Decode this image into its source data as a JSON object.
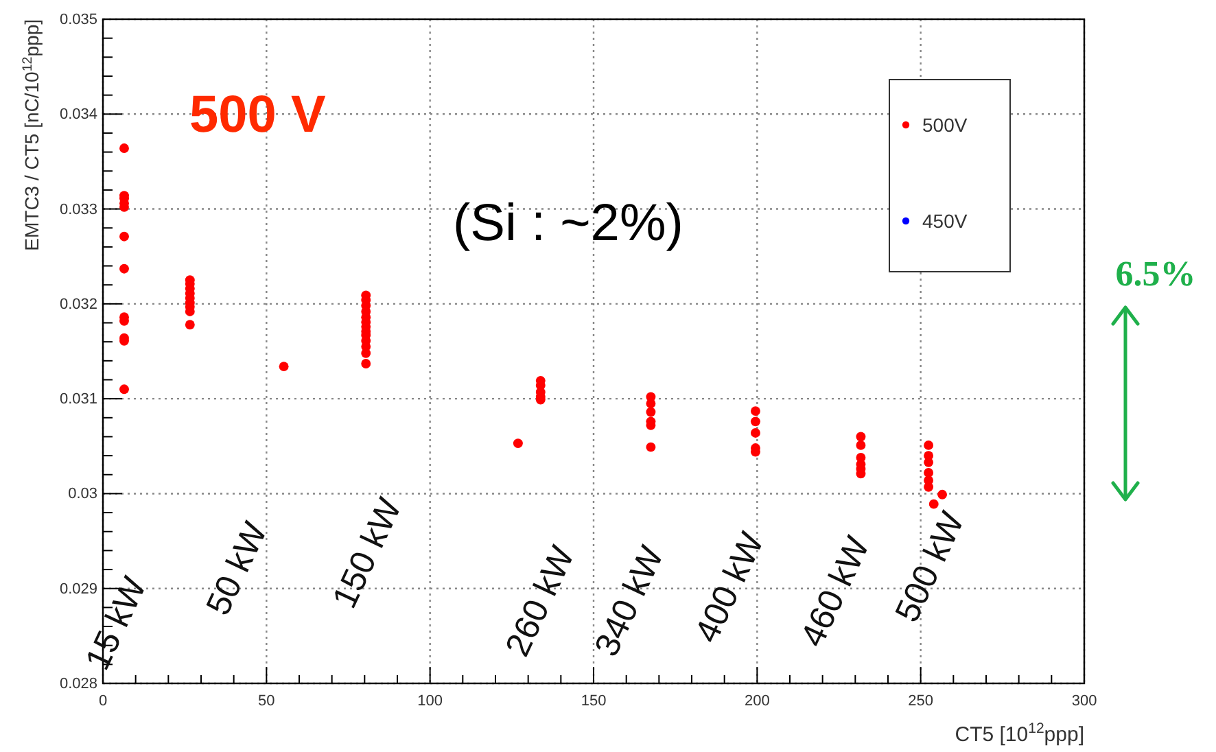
{
  "chart_data": {
    "type": "scatter",
    "xlabel": "CT5 [10$^{12}$ppp]",
    "ylabel": "EMTC3 / CT5 [nC/10$^{12}$ppp]",
    "xlim": [
      0,
      300
    ],
    "xticks": [
      0,
      50,
      100,
      150,
      200,
      250,
      300
    ],
    "ylim": [
      0.028,
      0.035
    ],
    "yticks": [
      0.028,
      0.029,
      0.03,
      0.031,
      0.032,
      0.033,
      0.034,
      0.035
    ],
    "grid": true,
    "legend": "top right",
    "marker": "circle",
    "series": [
      {
        "name": "500V",
        "color": "#ff0000",
        "x": [
          6.5,
          6.5,
          6.5,
          6.5,
          6.5,
          6.5,
          6.5,
          6.5,
          6.5,
          6.5,
          6.5,
          6.5,
          26.6,
          26.6,
          26.6,
          26.6,
          26.6,
          26.6,
          26.6,
          26.6,
          26.6,
          55.3,
          80.4,
          80.4,
          80.4,
          80.4,
          80.4,
          80.4,
          80.4,
          80.4,
          80.4,
          80.4,
          80.4,
          80.4,
          80.4,
          126.9,
          133.8,
          133.8,
          133.8,
          133.8,
          133.8,
          167.5,
          167.5,
          167.5,
          167.5,
          167.5,
          167.5,
          199.5,
          199.5,
          199.5,
          199.5,
          199.5,
          231.7,
          231.7,
          231.7,
          231.7,
          231.7,
          231.7,
          252.4,
          252.4,
          252.4,
          252.4,
          252.4,
          252.4,
          256.6,
          254
        ],
        "values": [
          0.03364,
          0.03314,
          0.03311,
          0.03306,
          0.03302,
          0.03271,
          0.03237,
          0.03186,
          0.03182,
          0.03164,
          0.03161,
          0.0311,
          0.03225,
          0.03221,
          0.03216,
          0.03211,
          0.03206,
          0.03201,
          0.03197,
          0.03192,
          0.03178,
          0.03134,
          0.03209,
          0.03204,
          0.03198,
          0.03192,
          0.03186,
          0.03181,
          0.03176,
          0.03171,
          0.03167,
          0.03161,
          0.03155,
          0.03148,
          0.03137,
          0.03053,
          0.03119,
          0.03114,
          0.03107,
          0.03102,
          0.03099,
          0.03102,
          0.03095,
          0.03086,
          0.03076,
          0.03072,
          0.03049,
          0.03087,
          0.03076,
          0.03064,
          0.03048,
          0.03044,
          0.0306,
          0.03051,
          0.03038,
          0.03031,
          0.03026,
          0.03021,
          0.03051,
          0.0304,
          0.03033,
          0.03022,
          0.03014,
          0.03007,
          0.02999,
          0.02989
        ]
      },
      {
        "name": "450V",
        "color": "#0000ff"
      }
    ],
    "annotations": [
      "500 V",
      "(Si : ~2%)",
      "6.5%",
      "15 kW",
      "50 kW",
      "150 kW",
      "260 kW",
      "340 kW",
      "400 kW",
      "460 kW",
      "500 kW"
    ]
  }
}
